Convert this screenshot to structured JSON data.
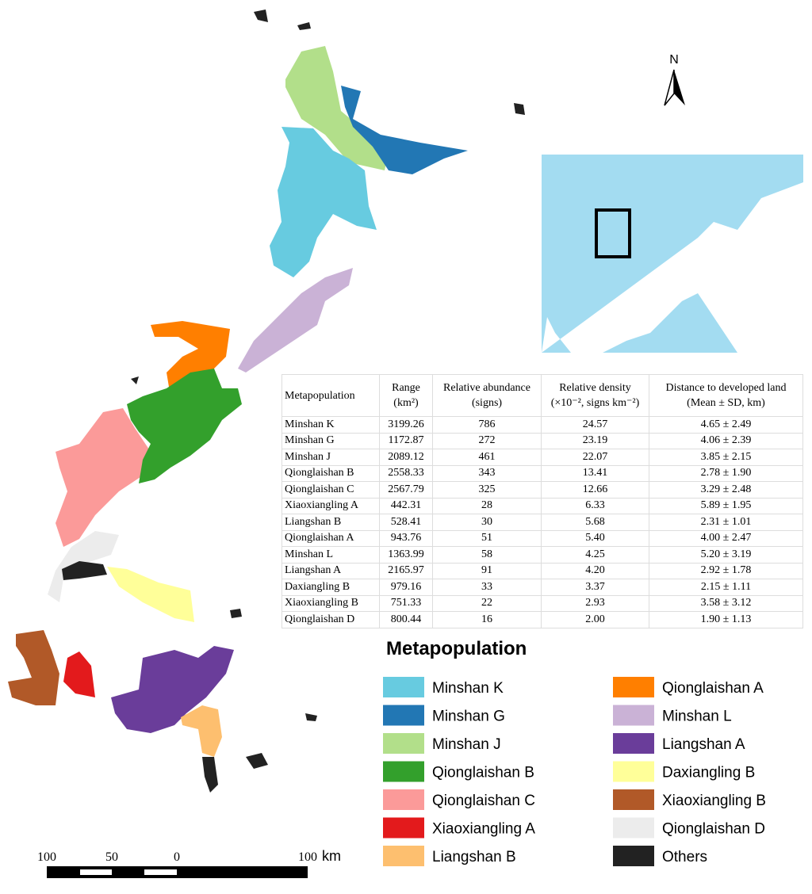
{
  "north": "N",
  "table": {
    "header": [
      [
        "Metapopulation"
      ],
      [
        "Range",
        "(km²)"
      ],
      [
        "Relative abundance",
        "(signs)"
      ],
      [
        "Relative density",
        "(×10⁻², signs km⁻²)"
      ],
      [
        "Distance to developed land",
        "(Mean ± SD, km)"
      ]
    ],
    "rows": [
      [
        "Minshan K",
        "3199.26",
        "786",
        "24.57",
        "4.65 ± 2.49"
      ],
      [
        "Minshan G",
        "1172.87",
        "272",
        "23.19",
        "4.06 ± 2.39"
      ],
      [
        "Minshan J",
        "2089.12",
        "461",
        "22.07",
        "3.85 ± 2.15"
      ],
      [
        "Qionglaishan B",
        "2558.33",
        "343",
        "13.41",
        "2.78 ± 1.90"
      ],
      [
        "Qionglaishan C",
        "2567.79",
        "325",
        "12.66",
        "3.29 ± 2.48"
      ],
      [
        "Xiaoxiangling A",
        "442.31",
        "28",
        "6.33",
        "5.89 ± 1.95"
      ],
      [
        "Liangshan B",
        "528.41",
        "30",
        "5.68",
        "2.31 ± 1.01"
      ],
      [
        "Qionglaishan A",
        "943.76",
        "51",
        "5.40",
        "4.00 ± 2.47"
      ],
      [
        "Minshan L",
        "1363.99",
        "58",
        "4.25",
        "5.20 ± 3.19"
      ],
      [
        "Liangshan A",
        "2165.97",
        "91",
        "4.20",
        "2.92 ± 1.78"
      ],
      [
        "Daxiangling B",
        "979.16",
        "33",
        "3.37",
        "2.15 ± 1.11"
      ],
      [
        "Xiaoxiangling B",
        "751.33",
        "22",
        "2.93",
        "3.58 ± 3.12"
      ],
      [
        "Qionglaishan D",
        "800.44",
        "16",
        "2.00",
        "1.90 ± 1.13"
      ]
    ]
  },
  "legend": {
    "title": "Metapopulation",
    "items": [
      {
        "label": "Minshan K",
        "color": "#67cbe0"
      },
      {
        "label": "Minshan G",
        "color": "#2277b4"
      },
      {
        "label": "Minshan J",
        "color": "#b2df8a"
      },
      {
        "label": "Qionglaishan B",
        "color": "#33a02c"
      },
      {
        "label": "Qionglaishan C",
        "color": "#fb9a99"
      },
      {
        "label": "Xiaoxiangling A",
        "color": "#e31a1c"
      },
      {
        "label": "Liangshan B",
        "color": "#fdbf6f"
      },
      {
        "label": "Qionglaishan A",
        "color": "#ff7f00"
      },
      {
        "label": "Minshan L",
        "color": "#cab2d6"
      },
      {
        "label": "Liangshan A",
        "color": "#6a3d9a"
      },
      {
        "label": "Daxiangling B",
        "color": "#ffff99"
      },
      {
        "label": "Xiaoxiangling B",
        "color": "#b15928"
      },
      {
        "label": "Qionglaishan D",
        "color": "#ececec"
      },
      {
        "label": "Others",
        "color": "#222222"
      }
    ]
  },
  "scale_bar": {
    "labels": [
      "100",
      "50",
      "0",
      "100"
    ],
    "unit": "km"
  }
}
